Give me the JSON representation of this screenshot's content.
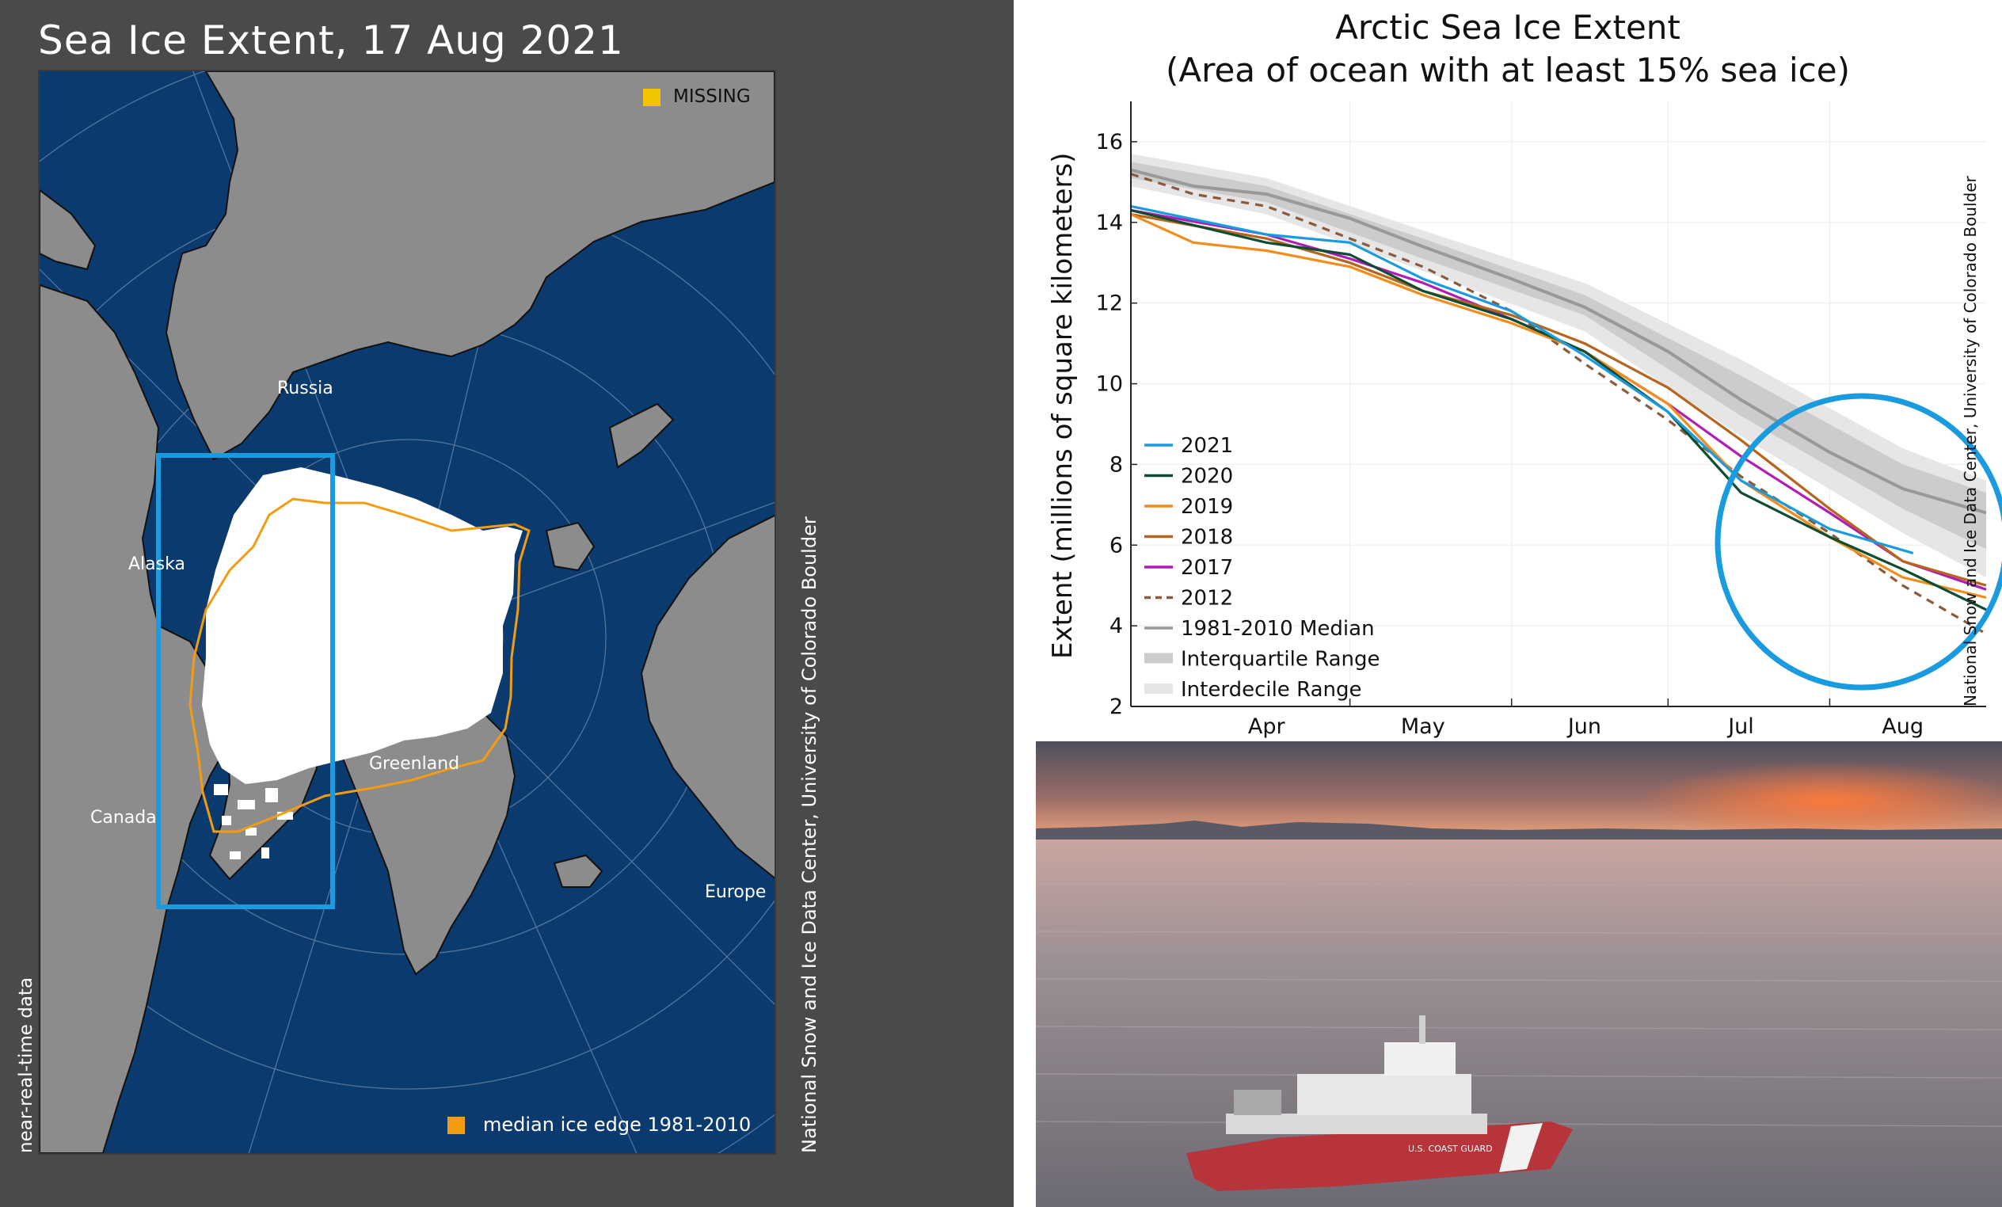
{
  "map": {
    "title": "Sea Ice Extent, 17 Aug 2021",
    "labels": {
      "russia": "Russia",
      "alaska": "Alaska",
      "canada": "Canada",
      "greenland": "Greenland",
      "europe": "Europe"
    },
    "legend_missing": "MISSING",
    "legend_median": "median ice edge 1981-2010",
    "credit": "National Snow and Ice Data Center, University of Colorado Boulder",
    "nrt_note": "near-real-time data",
    "colors": {
      "ocean": "#0b3a6e",
      "land": "#8c8c8c",
      "ice": "#ffffff",
      "median_edge": "#f39c12",
      "missing": "#f2c500",
      "highlight_box": "#1a9be0"
    }
  },
  "chart_data": {
    "type": "line",
    "title_line1": "Arctic Sea Ice Extent",
    "title_line2": "(Area of ocean with at least 15% sea ice)",
    "ylabel": "Extent (millions of square kilometers)",
    "xlabel": "",
    "ylim": [
      2,
      17
    ],
    "yticks": [
      2,
      4,
      6,
      8,
      10,
      12,
      14,
      16
    ],
    "x_domain": [
      "Mar 20",
      "Aug 31"
    ],
    "month_ticks": [
      {
        "label": "Apr",
        "date": "Apr 15"
      },
      {
        "label": "May",
        "date": "May 15"
      },
      {
        "label": "Jun",
        "date": "Jun 15"
      },
      {
        "label": "Jul",
        "date": "Jul 15"
      },
      {
        "label": "Aug",
        "date": "Aug 15"
      }
    ],
    "grid": true,
    "legend_position": "bottom-left",
    "credit": "National Snow and Ice Data Center, University of Colorado Boulder",
    "bands": [
      {
        "name": "Interdecile Range",
        "color": "#e6e6e6",
        "x": [
          "Mar 20",
          "Apr 15",
          "May 15",
          "Jun 15",
          "Jul 15",
          "Aug 15",
          "Aug 31"
        ],
        "lower": [
          14.9,
          14.2,
          12.8,
          11.3,
          8.7,
          6.3,
          5.2
        ],
        "upper": [
          15.7,
          15.1,
          13.8,
          12.5,
          10.6,
          8.4,
          7.6
        ]
      },
      {
        "name": "Interquartile Range",
        "color": "#cccccc",
        "x": [
          "Mar 20",
          "Apr 15",
          "May 15",
          "Jun 15",
          "Jul 15",
          "Aug 15",
          "Aug 31"
        ],
        "lower": [
          15.1,
          14.5,
          13.1,
          11.7,
          9.2,
          6.9,
          5.9
        ],
        "upper": [
          15.5,
          14.9,
          13.6,
          12.2,
          10.2,
          8.0,
          7.3
        ]
      }
    ],
    "series": [
      {
        "name": "2021",
        "color": "#1a9be0",
        "dash": false,
        "x": [
          "Mar 20",
          "Apr 15",
          "May 1",
          "May 15",
          "Jun 1",
          "Jun 15",
          "Jul 1",
          "Jul 15",
          "Aug 1",
          "Aug 17"
        ],
        "values": [
          14.4,
          13.7,
          13.5,
          12.6,
          11.8,
          10.7,
          9.3,
          7.6,
          6.4,
          5.8
        ]
      },
      {
        "name": "2020",
        "color": "#0e4d32",
        "dash": false,
        "x": [
          "Mar 20",
          "Apr 15",
          "May 1",
          "May 15",
          "Jun 1",
          "Jun 15",
          "Jul 1",
          "Jul 15",
          "Aug 1",
          "Aug 15",
          "Aug 31"
        ],
        "values": [
          14.3,
          13.5,
          13.2,
          12.3,
          11.6,
          10.8,
          9.3,
          7.3,
          6.2,
          5.4,
          4.4
        ]
      },
      {
        "name": "2019",
        "color": "#f28c1a",
        "dash": false,
        "x": [
          "Mar 20",
          "Apr 1",
          "Apr 15",
          "May 1",
          "May 15",
          "Jun 1",
          "Jun 15",
          "Jul 1",
          "Jul 15",
          "Aug 1",
          "Aug 15",
          "Aug 31"
        ],
        "values": [
          14.2,
          13.5,
          13.3,
          12.9,
          12.2,
          11.5,
          10.8,
          9.5,
          7.6,
          6.2,
          5.2,
          4.7
        ]
      },
      {
        "name": "2018",
        "color": "#b5651d",
        "dash": false,
        "x": [
          "Mar 20",
          "Apr 15",
          "May 1",
          "May 15",
          "Jun 1",
          "Jun 15",
          "Jul 1",
          "Jul 15",
          "Aug 1",
          "Aug 15",
          "Aug 31"
        ],
        "values": [
          14.2,
          13.6,
          13.0,
          12.3,
          11.7,
          11.0,
          9.9,
          8.6,
          6.9,
          5.6,
          5.0
        ]
      },
      {
        "name": "2017",
        "color": "#b01cb5",
        "dash": false,
        "x": [
          "Mar 20",
          "Apr 15",
          "May 1",
          "May 15",
          "Jun 1",
          "Jun 15",
          "Jul 1",
          "Jul 15",
          "Aug 1",
          "Aug 15",
          "Aug 31"
        ],
        "values": [
          14.3,
          13.7,
          13.1,
          12.5,
          11.6,
          10.8,
          9.5,
          8.2,
          6.8,
          5.6,
          4.9
        ]
      },
      {
        "name": "2012",
        "color": "#8b5a3c",
        "dash": true,
        "x": [
          "Mar 20",
          "Apr 1",
          "Apr 15",
          "May 1",
          "May 15",
          "Jun 1",
          "Jun 15",
          "Jul 1",
          "Jul 15",
          "Aug 1",
          "Aug 15",
          "Aug 31"
        ],
        "values": [
          15.2,
          14.7,
          14.4,
          13.6,
          12.9,
          11.8,
          10.5,
          9.1,
          7.7,
          6.3,
          5.0,
          3.8
        ]
      },
      {
        "name": "1981-2010 Median",
        "color": "#999999",
        "dash": false,
        "x": [
          "Mar 20",
          "Apr 1",
          "Apr 15",
          "May 1",
          "May 15",
          "Jun 1",
          "Jun 15",
          "Jul 1",
          "Jul 15",
          "Aug 1",
          "Aug 15",
          "Aug 31"
        ],
        "values": [
          15.3,
          14.9,
          14.7,
          14.1,
          13.4,
          12.6,
          11.9,
          10.8,
          9.6,
          8.3,
          7.4,
          6.8
        ]
      }
    ],
    "legend": [
      {
        "label": "2021",
        "color": "#1a9be0",
        "style": "solid"
      },
      {
        "label": "2020",
        "color": "#0e4d32",
        "style": "solid"
      },
      {
        "label": "2019",
        "color": "#f28c1a",
        "style": "solid"
      },
      {
        "label": "2018",
        "color": "#b5651d",
        "style": "solid"
      },
      {
        "label": "2017",
        "color": "#b01cb5",
        "style": "solid"
      },
      {
        "label": "2012",
        "color": "#8b5a3c",
        "style": "dash"
      },
      {
        "label": "1981-2010 Median",
        "color": "#999999",
        "style": "solid"
      },
      {
        "label": "Interquartile Range",
        "color": "#cccccc",
        "style": "band"
      },
      {
        "label": "Interdecile Range",
        "color": "#e6e6e6",
        "style": "band"
      }
    ],
    "highlight_circle_color": "#1a9be0"
  },
  "photo": {
    "subject": "coast-guard-icebreaker-at-sunset",
    "hull_text": "U.S. COAST GUARD",
    "colors": {
      "sky_top": "#4e4f5c",
      "sky_glow": "#e9825a",
      "sea": "#9a8f94",
      "hull": "#b7343b"
    }
  }
}
